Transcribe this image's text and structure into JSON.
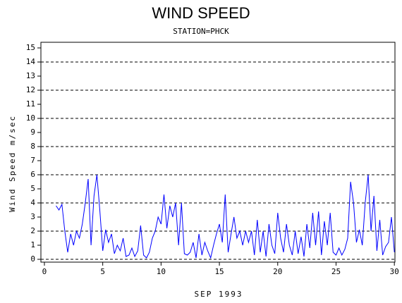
{
  "chart_data": {
    "type": "line",
    "title": "WIND SPEED",
    "subtitle": "STATION=PHCK",
    "x_label": "SEP 1993",
    "y_label": "Wind Speed m/sec",
    "xlim": [
      -0.3,
      30.05
    ],
    "ylim": [
      -0.2,
      15.4
    ],
    "xticks": [
      0,
      5,
      10,
      15,
      20,
      25,
      30
    ],
    "yticks": [
      0,
      1,
      2,
      3,
      4,
      5,
      6,
      7,
      8,
      9,
      10,
      11,
      12,
      13,
      14,
      15
    ],
    "grid": true,
    "x": [
      1,
      1.25,
      1.5,
      1.75,
      2,
      2.25,
      2.5,
      2.75,
      3,
      3.25,
      3.5,
      3.75,
      4,
      4.25,
      4.5,
      4.75,
      5,
      5.25,
      5.5,
      5.75,
      6,
      6.25,
      6.5,
      6.75,
      7,
      7.25,
      7.5,
      7.75,
      8,
      8.25,
      8.5,
      8.75,
      9,
      9.25,
      9.5,
      9.75,
      10,
      10.25,
      10.5,
      10.75,
      11,
      11.25,
      11.5,
      11.75,
      12,
      12.25,
      12.5,
      12.75,
      13,
      13.25,
      13.5,
      13.75,
      14,
      14.25,
      14.5,
      14.75,
      15,
      15.25,
      15.5,
      15.75,
      16,
      16.25,
      16.5,
      16.75,
      17,
      17.25,
      17.5,
      17.75,
      18,
      18.25,
      18.5,
      18.75,
      19,
      19.25,
      19.5,
      19.75,
      20,
      20.25,
      20.5,
      20.75,
      21,
      21.25,
      21.5,
      21.75,
      22,
      22.25,
      22.5,
      22.75,
      23,
      23.25,
      23.5,
      23.75,
      24,
      24.25,
      24.5,
      24.75,
      25,
      25.25,
      25.5,
      25.75,
      26,
      26.25,
      26.5,
      26.75,
      27,
      27.25,
      27.5,
      27.75,
      28,
      28.25,
      28.5,
      28.75,
      29,
      29.25,
      29.5,
      29.75,
      30
    ],
    "series": [
      {
        "color": "#0000ff",
        "values": [
          3.8,
          3.5,
          3.9,
          2.0,
          0.5,
          1.8,
          1.0,
          2.0,
          1.5,
          2.5,
          4.0,
          5.7,
          1.0,
          4.5,
          6.0,
          3.5,
          0.6,
          2.1,
          1.2,
          1.8,
          0.4,
          1.0,
          0.6,
          1.5,
          0.2,
          0.3,
          0.8,
          0.2,
          0.6,
          2.4,
          0.3,
          0.1,
          0.5,
          1.5,
          2.0,
          3.0,
          2.5,
          4.6,
          2.2,
          3.8,
          3.0,
          4.0,
          1.0,
          4.0,
          0.4,
          0.3,
          0.5,
          1.2,
          0.1,
          1.8,
          0.3,
          1.2,
          0.6,
          0.1,
          1.0,
          1.8,
          2.5,
          1.2,
          4.6,
          0.5,
          1.8,
          3.0,
          1.5,
          2.0,
          1.0,
          2.0,
          1.2,
          2.0,
          0.3,
          2.8,
          0.5,
          2.0,
          0.2,
          2.5,
          1.0,
          0.4,
          3.3,
          1.5,
          0.5,
          2.5,
          1.0,
          0.3,
          2.0,
          0.4,
          1.6,
          0.2,
          2.5,
          0.8,
          3.3,
          1.0,
          3.4,
          0.3,
          2.7,
          1.0,
          3.3,
          0.5,
          0.3,
          0.8,
          0.3,
          0.7,
          1.5,
          5.5,
          4.0,
          1.2,
          2.1,
          1.0,
          4.0,
          6.0,
          2.0,
          4.5,
          0.6,
          2.8,
          0.3,
          0.9,
          1.2,
          3.0,
          0.5
        ]
      }
    ]
  }
}
